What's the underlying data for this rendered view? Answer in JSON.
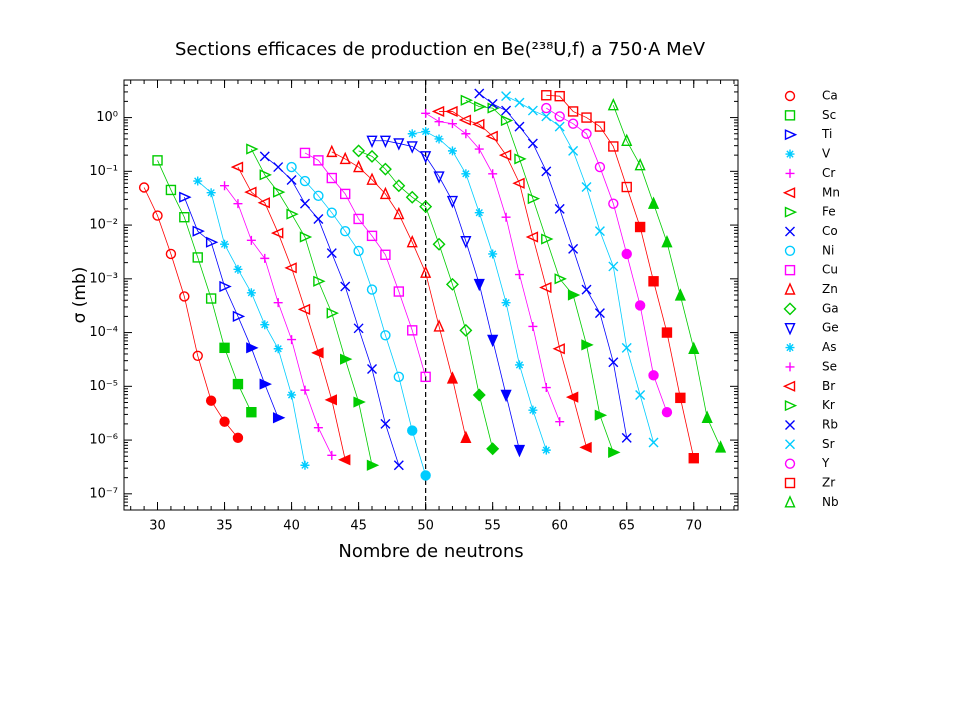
{
  "chart_data": {
    "type": "scatter",
    "title": "Sections efficaces de production en Be(²³⁸U,f) a 750·A MeV",
    "x_label": "Nombre de neutrons",
    "y_label": "σ (mb)",
    "log_y": true,
    "vline": 50,
    "xlim": [
      27.5,
      73.3
    ],
    "ylim": [
      5e-08,
      5
    ],
    "xticks": [
      30,
      35,
      40,
      45,
      50,
      55,
      60,
      65,
      70
    ],
    "yticks": [
      {
        "value": 1e-07,
        "label": "10⁻⁷"
      },
      {
        "value": 1e-06,
        "label": "10⁻⁶"
      },
      {
        "value": 1e-05,
        "label": "10⁻⁵"
      },
      {
        "value": 0.0001,
        "label": "10⁻⁴"
      },
      {
        "value": 0.001,
        "label": "10⁻³"
      },
      {
        "value": 0.01,
        "label": "10⁻²"
      },
      {
        "value": 0.1,
        "label": "10⁻¹"
      },
      {
        "value": 1,
        "label": "10⁰"
      }
    ],
    "series": [
      {
        "name": "Ca",
        "color": "#ff0000",
        "marker": "circle",
        "filled_from": 34,
        "x": [
          29,
          30,
          31,
          32,
          33,
          34,
          35,
          36
        ],
        "values": [
          0.05,
          0.015,
          0.0029,
          0.00047,
          3.7e-05,
          5.4e-06,
          2.2e-06,
          1.1e-06
        ]
      },
      {
        "name": "Sc",
        "color": "#00cc00",
        "marker": "square",
        "filled_from": 35,
        "x": [
          30,
          31,
          32,
          33,
          34,
          35,
          36,
          37
        ],
        "values": [
          0.16,
          0.045,
          0.014,
          0.0025,
          0.00043,
          5.2e-05,
          1.1e-05,
          3.3e-06
        ]
      },
      {
        "name": "Ti",
        "color": "#0000ff",
        "marker": "tri-right",
        "filled_from": 37,
        "x": [
          32,
          33,
          34,
          35,
          36,
          37,
          38,
          39
        ],
        "values": [
          0.033,
          0.0077,
          0.0048,
          0.00072,
          0.0002,
          5.2e-05,
          1.1e-05,
          2.6e-06
        ]
      },
      {
        "name": "V",
        "color": "#00ccff",
        "marker": "asterisk",
        "x": [
          33,
          34,
          35,
          36,
          37,
          38,
          39,
          40,
          41
        ],
        "values": [
          0.066,
          0.04,
          0.0044,
          0.0015,
          0.00055,
          0.00014,
          5e-05,
          6.9e-06,
          3.4e-07
        ]
      },
      {
        "name": "Cr",
        "color": "#ff00ff",
        "marker": "plus",
        "x": [
          35,
          36,
          37,
          38,
          39,
          40,
          41,
          42,
          43
        ],
        "values": [
          0.054,
          0.025,
          0.0052,
          0.0024,
          0.00036,
          7.4e-05,
          8.5e-06,
          1.7e-06,
          5.2e-07
        ]
      },
      {
        "name": "Mn",
        "color": "#ff0000",
        "marker": "tri-left",
        "filled_from": 42,
        "x": [
          36,
          37,
          38,
          39,
          40,
          41,
          42,
          43,
          44
        ],
        "values": [
          0.12,
          0.041,
          0.026,
          0.0071,
          0.0016,
          0.00027,
          4.2e-05,
          5.6e-06,
          4.3e-07
        ]
      },
      {
        "name": "Fe",
        "color": "#00cc00",
        "marker": "tri-right",
        "filled_from": 44,
        "x": [
          37,
          38,
          39,
          40,
          41,
          42,
          43,
          44,
          45,
          46
        ],
        "values": [
          0.26,
          0.086,
          0.041,
          0.016,
          0.006,
          0.0009,
          0.00023,
          3.2e-05,
          5.1e-06,
          3.4e-07
        ]
      },
      {
        "name": "Co",
        "color": "#0000ff",
        "marker": "cross",
        "x": [
          38,
          39,
          40,
          41,
          42,
          43,
          44,
          45,
          46,
          47,
          48
        ],
        "values": [
          0.19,
          0.12,
          0.069,
          0.025,
          0.013,
          0.003,
          0.00072,
          0.00012,
          2.1e-05,
          2e-06,
          3.4e-07
        ]
      },
      {
        "name": "Ni",
        "color": "#00ccff",
        "marker": "circle",
        "filled_from": 49,
        "x": [
          40,
          41,
          42,
          43,
          44,
          45,
          46,
          47,
          48,
          49,
          50
        ],
        "values": [
          0.12,
          0.066,
          0.035,
          0.017,
          0.0077,
          0.0033,
          0.00063,
          8.9e-05,
          1.5e-05,
          1.5e-06,
          2.2e-07
        ]
      },
      {
        "name": "Cu",
        "color": "#ff00ff",
        "marker": "square",
        "x": [
          41,
          42,
          43,
          44,
          45,
          46,
          47,
          48,
          49,
          50
        ],
        "values": [
          0.22,
          0.16,
          0.075,
          0.038,
          0.013,
          0.0063,
          0.0028,
          0.00058,
          0.00011,
          1.5e-05
        ]
      },
      {
        "name": "Zn",
        "color": "#ff0000",
        "marker": "tri-up",
        "filled_from": 52,
        "x": [
          43,
          44,
          45,
          46,
          47,
          48,
          49,
          50,
          51,
          52,
          53
        ],
        "values": [
          0.23,
          0.17,
          0.12,
          0.07,
          0.038,
          0.016,
          0.0048,
          0.0013,
          0.00013,
          1.4e-05,
          1.1e-06
        ]
      },
      {
        "name": "Ga",
        "color": "#00cc00",
        "marker": "diamond",
        "filled_from": 54,
        "x": [
          45,
          46,
          47,
          48,
          49,
          50,
          51,
          52,
          53,
          54,
          55
        ],
        "values": [
          0.24,
          0.19,
          0.11,
          0.054,
          0.033,
          0.022,
          0.0044,
          0.00079,
          0.00011,
          6.9e-06,
          6.9e-07
        ]
      },
      {
        "name": "Ge",
        "color": "#0000ff",
        "marker": "tri-down",
        "filled_from": 54,
        "x": [
          46,
          47,
          48,
          49,
          50,
          51,
          52,
          53,
          54,
          55,
          56,
          57
        ],
        "values": [
          0.37,
          0.37,
          0.33,
          0.29,
          0.19,
          0.08,
          0.028,
          0.005,
          0.0008,
          7.3e-05,
          6.9e-06,
          6.5e-07
        ]
      },
      {
        "name": "As",
        "color": "#00ccff",
        "marker": "asterisk",
        "x": [
          49,
          50,
          51,
          52,
          53,
          54,
          55,
          56,
          57,
          58,
          59
        ],
        "values": [
          0.5,
          0.55,
          0.4,
          0.24,
          0.09,
          0.017,
          0.0029,
          0.00036,
          2.5e-05,
          3.6e-06,
          6.5e-07
        ]
      },
      {
        "name": "Se",
        "color": "#ff00ff",
        "marker": "plus",
        "x": [
          50,
          51,
          52,
          53,
          54,
          55,
          56,
          57,
          58,
          59,
          60
        ],
        "values": [
          1.2,
          0.84,
          0.77,
          0.5,
          0.26,
          0.09,
          0.014,
          0.0012,
          0.00013,
          9.5e-06,
          2.2e-06
        ]
      },
      {
        "name": "Br",
        "color": "#ff0000",
        "marker": "tri-left",
        "filled_from": 61,
        "x": [
          51,
          52,
          53,
          54,
          55,
          56,
          57,
          58,
          59,
          60,
          61,
          62
        ],
        "values": [
          1.3,
          1.3,
          0.9,
          0.75,
          0.45,
          0.2,
          0.06,
          0.006,
          0.00069,
          5e-05,
          6.3e-06,
          7.3e-07
        ]
      },
      {
        "name": "Kr",
        "color": "#00cc00",
        "marker": "tri-right",
        "filled_from": 61,
        "x": [
          53,
          54,
          55,
          56,
          57,
          58,
          59,
          60,
          61,
          62,
          63,
          64
        ],
        "values": [
          2.1,
          1.6,
          1.5,
          0.88,
          0.17,
          0.031,
          0.0055,
          0.001,
          0.0005,
          5.9e-05,
          2.9e-06,
          5.9e-07
        ]
      },
      {
        "name": "Rb",
        "color": "#0000ff",
        "marker": "cross",
        "x": [
          54,
          55,
          56,
          57,
          58,
          59,
          60,
          61,
          62,
          63,
          64,
          65
        ],
        "values": [
          2.8,
          1.8,
          1.35,
          0.68,
          0.33,
          0.1,
          0.02,
          0.0036,
          0.00063,
          0.00023,
          2.8e-05,
          1.1e-06
        ]
      },
      {
        "name": "Sr",
        "color": "#00ccff",
        "marker": "cross",
        "x": [
          56,
          57,
          58,
          59,
          60,
          61,
          62,
          63,
          64,
          65,
          66,
          67
        ],
        "values": [
          2.5,
          1.9,
          1.35,
          1.05,
          0.68,
          0.24,
          0.051,
          0.0077,
          0.0017,
          5.2e-05,
          6.9e-06,
          9e-07
        ]
      },
      {
        "name": "Y",
        "color": "#ff00ff",
        "marker": "circle",
        "filled_from": 65,
        "x": [
          59,
          60,
          61,
          62,
          63,
          64,
          65,
          66,
          67,
          68
        ],
        "values": [
          1.5,
          1.05,
          0.77,
          0.5,
          0.12,
          0.025,
          0.0029,
          0.00032,
          1.6e-05,
          3.3e-06
        ]
      },
      {
        "name": "Zr",
        "color": "#ff0000",
        "marker": "square",
        "filled_from": 66,
        "x": [
          59,
          60,
          61,
          62,
          63,
          64,
          65,
          66,
          67,
          68,
          69,
          70
        ],
        "values": [
          2.6,
          2.5,
          1.3,
          1.0,
          0.68,
          0.29,
          0.051,
          0.0092,
          0.0009,
          0.0001,
          6.1e-06,
          4.6e-07
        ]
      },
      {
        "name": "Nb",
        "color": "#00cc00",
        "marker": "tri-up",
        "filled_from": 67,
        "x": [
          64,
          65,
          66,
          67,
          68,
          69,
          70,
          71,
          72
        ],
        "values": [
          1.7,
          0.37,
          0.13,
          0.025,
          0.0048,
          0.00049,
          5e-05,
          2.6e-06,
          7.3e-07
        ]
      }
    ]
  }
}
